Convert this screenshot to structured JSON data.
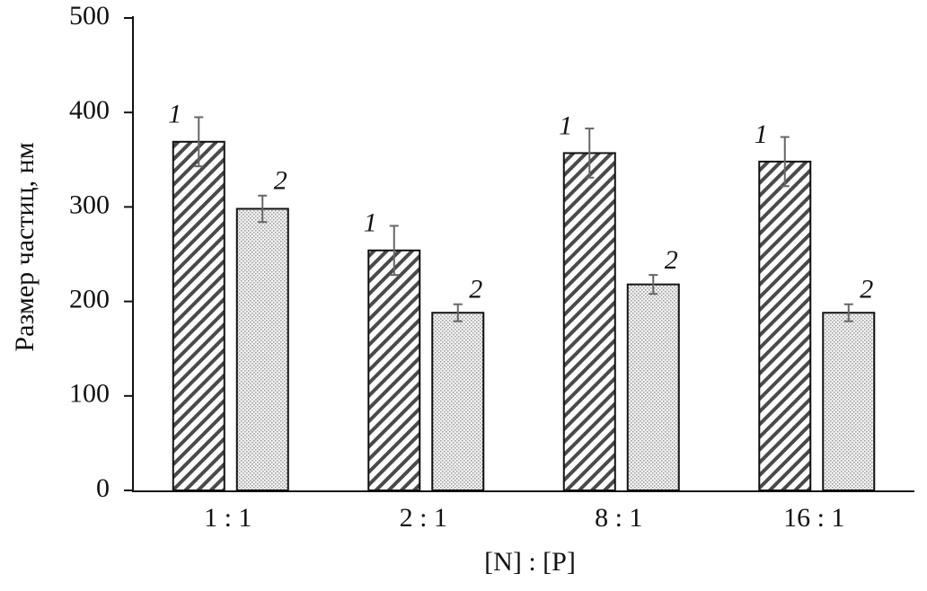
{
  "chart_data": {
    "type": "bar",
    "x_label": "[N] : [P]",
    "y_label": "Размер частиц, нм",
    "categories": [
      "1 : 1",
      "2 : 1",
      "8 : 1",
      "16 : 1"
    ],
    "series": [
      {
        "name": "1",
        "color": "#4a4a4a",
        "pattern": "hatch",
        "values": [
          369,
          254,
          357,
          348
        ],
        "errors": [
          26,
          26,
          26,
          26
        ]
      },
      {
        "name": "2",
        "color": "#9a9a9a",
        "pattern": "dots",
        "values": [
          298,
          188,
          218,
          188
        ],
        "errors": [
          14,
          9,
          10,
          9
        ]
      }
    ],
    "ylim": [
      0,
      500
    ],
    "yticks": [
      0,
      100,
      200,
      300,
      400,
      500
    ],
    "grid": false
  }
}
